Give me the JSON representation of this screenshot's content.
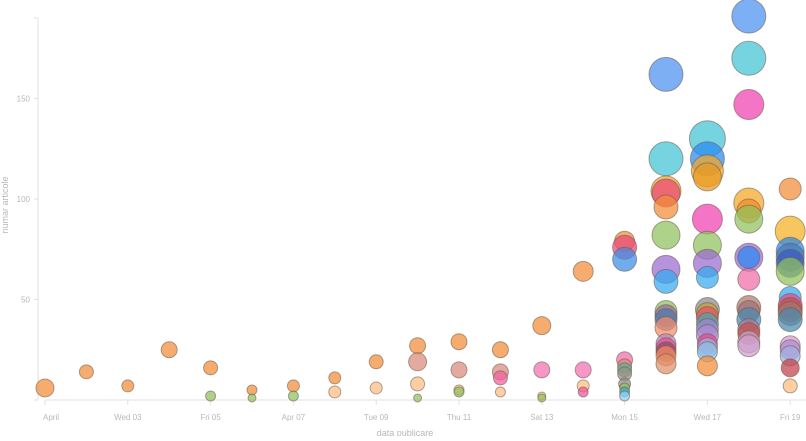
{
  "chart_data": {
    "type": "scatter",
    "subtype": "bubble",
    "title": "",
    "xlabel": "data publicare",
    "ylabel": "numar articole",
    "x_ticks": [
      "April",
      "Wed 03",
      "Fri 05",
      "Apr 07",
      "Tue 09",
      "Thu 11",
      "Sat 13",
      "Mon 15",
      "Wed 17",
      "Fri 19"
    ],
    "y_ticks": [
      50,
      100,
      150
    ],
    "ylim": [
      0,
      191
    ],
    "xlim_days": [
      1,
      19
    ],
    "grid": false,
    "legend": null,
    "points": [
      {
        "day": 1,
        "y": 6,
        "r": 9,
        "color": "#f28c38"
      },
      {
        "day": 2,
        "y": 14,
        "r": 7,
        "color": "#f28c38"
      },
      {
        "day": 3,
        "y": 7,
        "r": 6,
        "color": "#f28c38"
      },
      {
        "day": 4,
        "y": 25,
        "r": 8,
        "color": "#f28c38"
      },
      {
        "day": 5,
        "y": 16,
        "r": 7,
        "color": "#f28c38"
      },
      {
        "day": 5,
        "y": 2,
        "r": 5,
        "color": "#8fc05c"
      },
      {
        "day": 6,
        "y": 5,
        "r": 5,
        "color": "#f28c38"
      },
      {
        "day": 6,
        "y": 1,
        "r": 4,
        "color": "#8fc05c"
      },
      {
        "day": 7,
        "y": 7,
        "r": 6,
        "color": "#f28c38"
      },
      {
        "day": 7,
        "y": 2,
        "r": 5,
        "color": "#8fc05c"
      },
      {
        "day": 8,
        "y": 11,
        "r": 6,
        "color": "#f28c38"
      },
      {
        "day": 8,
        "y": 4,
        "r": 6,
        "color": "#ffbd80"
      },
      {
        "day": 9,
        "y": 19,
        "r": 7,
        "color": "#f28c38"
      },
      {
        "day": 9,
        "y": 6,
        "r": 6,
        "color": "#ffbd80"
      },
      {
        "day": 10,
        "y": 27,
        "r": 8,
        "color": "#f28c38"
      },
      {
        "day": 10,
        "y": 19,
        "r": 9,
        "color": "#d9897a"
      },
      {
        "day": 10,
        "y": 8,
        "r": 7,
        "color": "#ffbd80"
      },
      {
        "day": 10,
        "y": 1,
        "r": 4,
        "color": "#8fc05c"
      },
      {
        "day": 11,
        "y": 29,
        "r": 8,
        "color": "#f28c38"
      },
      {
        "day": 11,
        "y": 15,
        "r": 8,
        "color": "#d9897a"
      },
      {
        "day": 11,
        "y": 5,
        "r": 5,
        "color": "#ffbd80"
      },
      {
        "day": 11,
        "y": 4,
        "r": 5,
        "color": "#8fc05c"
      },
      {
        "day": 12,
        "y": 25,
        "r": 8,
        "color": "#f28c38"
      },
      {
        "day": 12,
        "y": 14,
        "r": 8,
        "color": "#d9897a"
      },
      {
        "day": 12,
        "y": 11,
        "r": 7,
        "color": "#f05fa0"
      },
      {
        "day": 12,
        "y": 4,
        "r": 5,
        "color": "#ffbd80"
      },
      {
        "day": 13,
        "y": 37,
        "r": 9,
        "color": "#f28c38"
      },
      {
        "day": 13,
        "y": 15,
        "r": 8,
        "color": "#f36fb0"
      },
      {
        "day": 13,
        "y": 2,
        "r": 4,
        "color": "#ffbd80"
      },
      {
        "day": 13,
        "y": 1,
        "r": 4,
        "color": "#8fc05c"
      },
      {
        "day": 14,
        "y": 64,
        "r": 10,
        "color": "#f28c38"
      },
      {
        "day": 14,
        "y": 15,
        "r": 8,
        "color": "#f36fb0"
      },
      {
        "day": 14,
        "y": 7,
        "r": 6,
        "color": "#ffbd80"
      },
      {
        "day": 14,
        "y": 4,
        "r": 5,
        "color": "#f050a0"
      },
      {
        "day": 15,
        "y": 79,
        "r": 10,
        "color": "#f28c38"
      },
      {
        "day": 15,
        "y": 76,
        "r": 12,
        "color": "#e8467a"
      },
      {
        "day": 15,
        "y": 70,
        "r": 12,
        "color": "#3a8ee6"
      },
      {
        "day": 15,
        "y": 20,
        "r": 8,
        "color": "#ef6ca5"
      },
      {
        "day": 15,
        "y": 17,
        "r": 7,
        "color": "#d9897a"
      },
      {
        "day": 15,
        "y": 15,
        "r": 7,
        "color": "#4fb89c"
      },
      {
        "day": 15,
        "y": 13,
        "r": 7,
        "color": "#9b8c80"
      },
      {
        "day": 15,
        "y": 8,
        "r": 6,
        "color": "#8a8a8a"
      },
      {
        "day": 15,
        "y": 6,
        "r": 5,
        "color": "#8fc05c"
      },
      {
        "day": 15,
        "y": 4,
        "r": 5,
        "color": "#33aacc"
      },
      {
        "day": 15,
        "y": 2,
        "r": 5,
        "color": "#8fd0f2"
      },
      {
        "day": 16,
        "y": 162,
        "r": 17,
        "color": "#4a90f0"
      },
      {
        "day": 16,
        "y": 120,
        "r": 17,
        "color": "#40c4d4"
      },
      {
        "day": 16,
        "y": 104,
        "r": 15,
        "color": "#f5a623"
      },
      {
        "day": 16,
        "y": 103,
        "r": 14,
        "color": "#e8467a"
      },
      {
        "day": 16,
        "y": 96,
        "r": 12,
        "color": "#f28c38"
      },
      {
        "day": 16,
        "y": 82,
        "r": 14,
        "color": "#8fc05c"
      },
      {
        "day": 16,
        "y": 65,
        "r": 14,
        "color": "#9a6ad0"
      },
      {
        "day": 16,
        "y": 59,
        "r": 12,
        "color": "#33aaf0"
      },
      {
        "day": 16,
        "y": 44,
        "r": 11,
        "color": "#8fc05c"
      },
      {
        "day": 16,
        "y": 42,
        "r": 11,
        "color": "#9b6aa0"
      },
      {
        "day": 16,
        "y": 40,
        "r": 11,
        "color": "#4a7ab0"
      },
      {
        "day": 16,
        "y": 36,
        "r": 11,
        "color": "#f28c68"
      },
      {
        "day": 16,
        "y": 28,
        "r": 10,
        "color": "#b08ac0"
      },
      {
        "day": 16,
        "y": 26,
        "r": 10,
        "color": "#e84a8a"
      },
      {
        "day": 16,
        "y": 24,
        "r": 10,
        "color": "#8a4a70"
      },
      {
        "day": 16,
        "y": 22,
        "r": 10,
        "color": "#f28c58"
      },
      {
        "day": 16,
        "y": 18,
        "r": 10,
        "color": "#e0906a"
      },
      {
        "day": 17,
        "y": 130,
        "r": 18,
        "color": "#40c4d4"
      },
      {
        "day": 17,
        "y": 120,
        "r": 17,
        "color": "#2a88f0"
      },
      {
        "day": 17,
        "y": 114,
        "r": 16,
        "color": "#f5a623"
      },
      {
        "day": 17,
        "y": 111,
        "r": 14,
        "color": "#e89a20"
      },
      {
        "day": 17,
        "y": 90,
        "r": 15,
        "color": "#f040b0"
      },
      {
        "day": 17,
        "y": 77,
        "r": 14,
        "color": "#8fc05c"
      },
      {
        "day": 17,
        "y": 68,
        "r": 14,
        "color": "#9a6ad0"
      },
      {
        "day": 17,
        "y": 61,
        "r": 11,
        "color": "#33aaf0"
      },
      {
        "day": 17,
        "y": 45,
        "r": 12,
        "color": "#8a8a8a"
      },
      {
        "day": 17,
        "y": 43,
        "r": 11,
        "color": "#c8a030"
      },
      {
        "day": 17,
        "y": 41,
        "r": 11,
        "color": "#e8506a"
      },
      {
        "day": 17,
        "y": 38,
        "r": 11,
        "color": "#4aa8b0"
      },
      {
        "day": 17,
        "y": 35,
        "r": 11,
        "color": "#9a88d0"
      },
      {
        "day": 17,
        "y": 32,
        "r": 11,
        "color": "#b08ad0"
      },
      {
        "day": 17,
        "y": 28,
        "r": 10,
        "color": "#e84a8a"
      },
      {
        "day": 17,
        "y": 26,
        "r": 10,
        "color": "#a0b0e0"
      },
      {
        "day": 17,
        "y": 24,
        "r": 10,
        "color": "#8ac0e8"
      },
      {
        "day": 17,
        "y": 17,
        "r": 10,
        "color": "#f28c38"
      },
      {
        "day": 18,
        "y": 191,
        "r": 17,
        "color": "#4a90f0"
      },
      {
        "day": 18,
        "y": 170,
        "r": 17,
        "color": "#40c4d4"
      },
      {
        "day": 18,
        "y": 147,
        "r": 15,
        "color": "#f040b0"
      },
      {
        "day": 18,
        "y": 98,
        "r": 15,
        "color": "#f5a623"
      },
      {
        "day": 18,
        "y": 94,
        "r": 12,
        "color": "#f28c28"
      },
      {
        "day": 18,
        "y": 90,
        "r": 14,
        "color": "#8fc05c"
      },
      {
        "day": 18,
        "y": 71,
        "r": 14,
        "color": "#9a6ad0"
      },
      {
        "day": 18,
        "y": 71,
        "r": 11,
        "color": "#2a88f0"
      },
      {
        "day": 18,
        "y": 60,
        "r": 11,
        "color": "#ef6ca5"
      },
      {
        "day": 18,
        "y": 46,
        "r": 12,
        "color": "#b07a6a"
      },
      {
        "day": 18,
        "y": 44,
        "r": 11,
        "color": "#a0707a"
      },
      {
        "day": 18,
        "y": 40,
        "r": 12,
        "color": "#4a8ab0"
      },
      {
        "day": 18,
        "y": 35,
        "r": 11,
        "color": "#b07aa0"
      },
      {
        "day": 18,
        "y": 33,
        "r": 11,
        "color": "#c0504a"
      },
      {
        "day": 18,
        "y": 29,
        "r": 11,
        "color": "#c8a0c8"
      },
      {
        "day": 18,
        "y": 27,
        "r": 11,
        "color": "#d0a0d0"
      },
      {
        "day": 19,
        "y": 105,
        "r": 11,
        "color": "#f28c38"
      },
      {
        "day": 19,
        "y": 84,
        "r": 15,
        "color": "#f5b020"
      },
      {
        "day": 19,
        "y": 74,
        "r": 14,
        "color": "#2a88f0"
      },
      {
        "day": 19,
        "y": 71,
        "r": 14,
        "color": "#4a7ab0"
      },
      {
        "day": 19,
        "y": 68,
        "r": 14,
        "color": "#3a5ac0"
      },
      {
        "day": 19,
        "y": 64,
        "r": 14,
        "color": "#8fc05c"
      },
      {
        "day": 19,
        "y": 51,
        "r": 11,
        "color": "#33aaf0"
      },
      {
        "day": 19,
        "y": 47,
        "r": 12,
        "color": "#e84a8a"
      },
      {
        "day": 19,
        "y": 45,
        "r": 12,
        "color": "#c0504a"
      },
      {
        "day": 19,
        "y": 43,
        "r": 12,
        "color": "#a07a6a"
      },
      {
        "day": 19,
        "y": 40,
        "r": 12,
        "color": "#4a8ab0"
      },
      {
        "day": 19,
        "y": 27,
        "r": 10,
        "color": "#d0a0d0"
      },
      {
        "day": 19,
        "y": 25,
        "r": 10,
        "color": "#b08ad0"
      },
      {
        "day": 19,
        "y": 22,
        "r": 10,
        "color": "#a0b0e0"
      },
      {
        "day": 19,
        "y": 16,
        "r": 9,
        "color": "#c0404a"
      },
      {
        "day": 19,
        "y": 7,
        "r": 7,
        "color": "#ffbd80"
      }
    ]
  },
  "axes": {
    "x_label": "data publicare",
    "y_label": "numar articole"
  }
}
